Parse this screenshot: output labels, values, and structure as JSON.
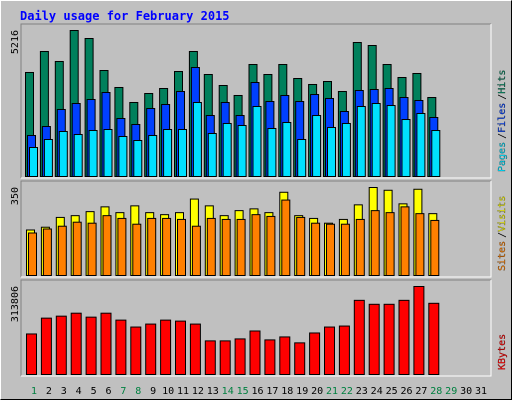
{
  "chart_data": [
    {
      "type": "bar",
      "title": "Daily usage for February 2015",
      "ylim": [
        0,
        5216
      ],
      "yticks": [
        5216
      ],
      "legend_separator": "/",
      "series": [
        {
          "name": "Hits",
          "color": "#00805c",
          "values": [
            3716,
            4466,
            4109,
            5216,
            4930,
            3787,
            3180,
            2644,
            2965,
            3144,
            3751,
            4466,
            3644,
            3251,
            2894,
            4001,
            3644,
            4001,
            3501,
            3287,
            3394,
            3037,
            4787,
            4680,
            4001,
            3537,
            3680,
            2822,
            null,
            null,
            null
          ]
        },
        {
          "name": "Files",
          "color": "#0040ff",
          "values": [
            1465,
            1786,
            2394,
            2608,
            2751,
            3001,
            2072,
            1858,
            2429,
            2572,
            3037,
            3894,
            2179,
            2644,
            2179,
            3358,
            2679,
            2894,
            2679,
            2929,
            2787,
            2322,
            3072,
            3108,
            3144,
            2822,
            2715,
            2108,
            null,
            null,
            null
          ]
        },
        {
          "name": "Pages",
          "color": "#00e0ff",
          "values": [
            1036,
            1322,
            1608,
            1500,
            1643,
            1679,
            1429,
            1286,
            1465,
            1679,
            1679,
            2644,
            1536,
            1894,
            1822,
            2501,
            1715,
            1929,
            1322,
            2179,
            1751,
            1894,
            2501,
            2608,
            2536,
            2036,
            2251,
            1643,
            null,
            null,
            null
          ]
        }
      ]
    },
    {
      "type": "bar",
      "ylim": [
        0,
        350
      ],
      "yticks": [
        350
      ],
      "legend_separator": "/",
      "series": [
        {
          "name": "Visits",
          "color": "#ffff00",
          "values": [
            181,
            192,
            231,
            238,
            254,
            273,
            250,
            277,
            250,
            242,
            250,
            304,
            277,
            238,
            258,
            265,
            250,
            331,
            238,
            227,
            208,
            223,
            281,
            350,
            339,
            285,
            343,
            246,
            null,
            null,
            null
          ]
        },
        {
          "name": "Sites",
          "color": "#ff8000",
          "values": [
            169,
            185,
            196,
            212,
            208,
            238,
            227,
            204,
            227,
            227,
            223,
            196,
            227,
            223,
            223,
            242,
            235,
            300,
            231,
            208,
            204,
            204,
            223,
            258,
            250,
            273,
            246,
            219,
            null,
            null,
            null
          ]
        }
      ]
    },
    {
      "type": "bar",
      "ylim": [
        0,
        313806
      ],
      "yticks": [
        313806
      ],
      "categories": [
        "1",
        "2",
        "3",
        "4",
        "5",
        "6",
        "7",
        "8",
        "9",
        "10",
        "11",
        "12",
        "13",
        "14",
        "15",
        "16",
        "17",
        "18",
        "19",
        "20",
        "21",
        "22",
        "23",
        "24",
        "25",
        "26",
        "27",
        "28",
        "29",
        "30",
        "31"
      ],
      "category_colors": [
        "#008040",
        "#000000",
        "#000000",
        "#000000",
        "#000000",
        "#000000",
        "#008040",
        "#008040",
        "#000000",
        "#000000",
        "#000000",
        "#000000",
        "#000000",
        "#008040",
        "#008040",
        "#000000",
        "#000000",
        "#000000",
        "#000000",
        "#000000",
        "#008040",
        "#008040",
        "#000000",
        "#000000",
        "#000000",
        "#000000",
        "#000000",
        "#008040",
        "#008040",
        "#000000",
        "#000000"
      ],
      "series": [
        {
          "name": "KBytes",
          "color": "#ff0000",
          "values": [
            144566,
            200980,
            208034,
            218612,
            204508,
            218612,
            193926,
            169247,
            179824,
            193926,
            190400,
            179824,
            119883,
            119883,
            126935,
            155144,
            123409,
            133987,
            112831,
            148091,
            169247,
            172773,
            264448,
            250344,
            250344,
            264448,
            313806,
            253870,
            null,
            null,
            null
          ]
        }
      ]
    }
  ]
}
